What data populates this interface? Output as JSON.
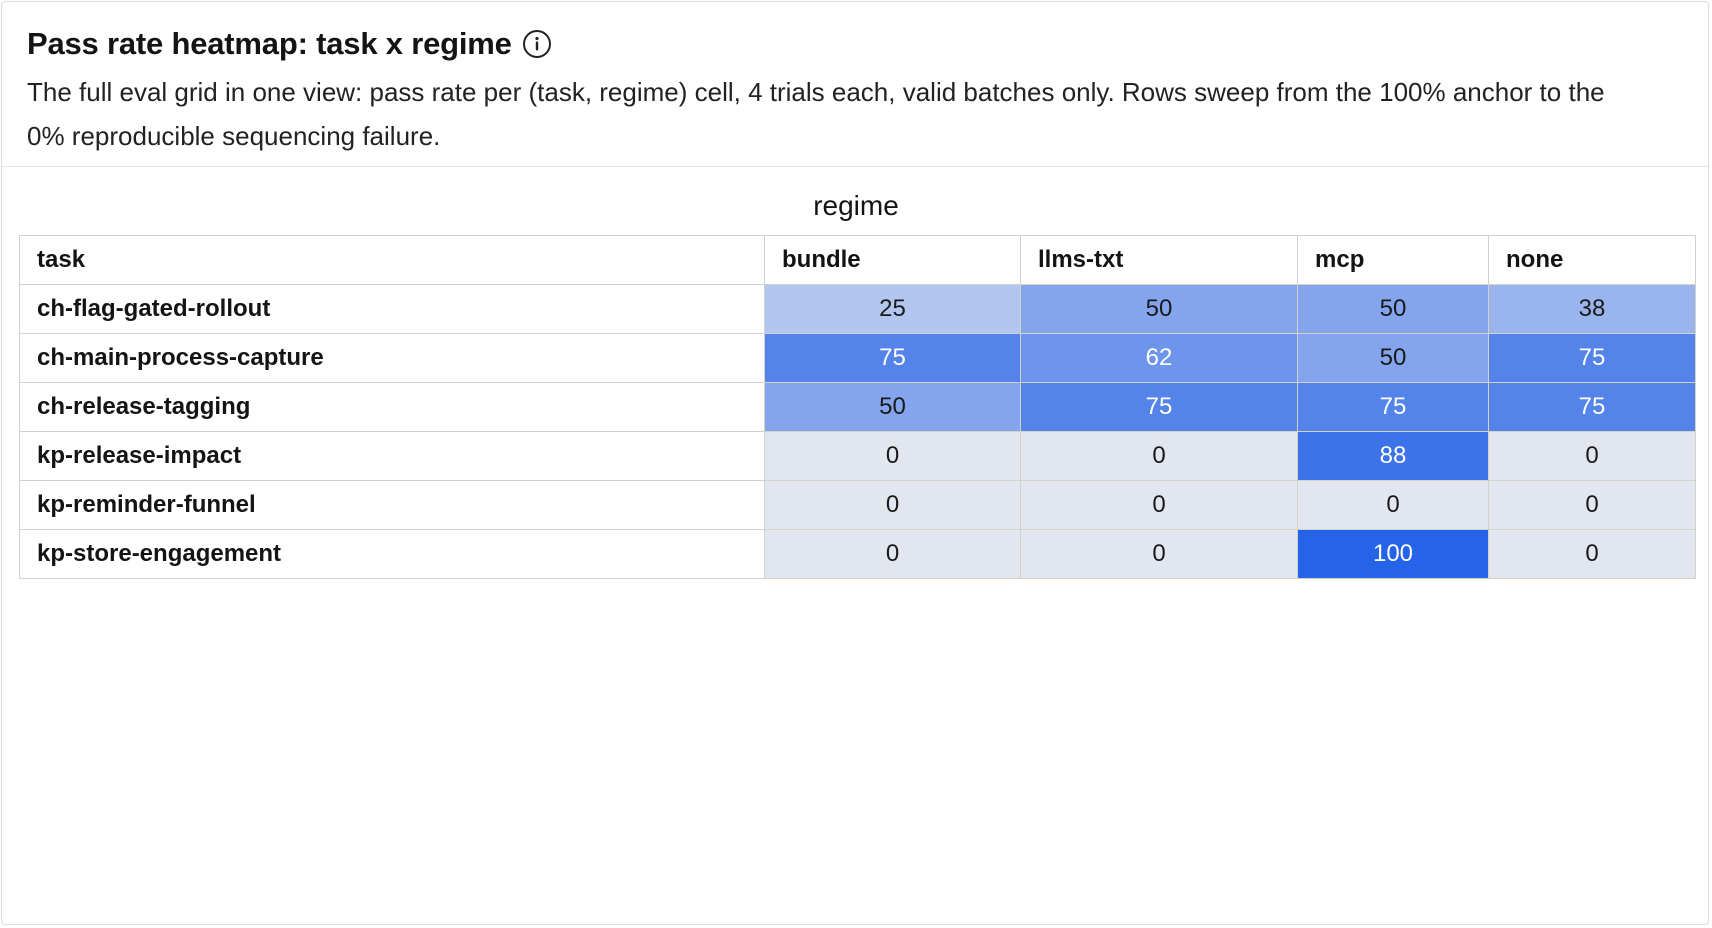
{
  "header": {
    "title": "Pass rate heatmap: task x regime",
    "info_icon": "info-icon",
    "subtitle": "The full eval grid in one view: pass rate per (task, regime) cell, 4 trials each, valid batches only. Rows sweep from the 100% anchor to the 0% reproducible sequencing failure."
  },
  "chart_data": {
    "type": "heatmap",
    "column_axis_label": "regime",
    "row_header": "task",
    "columns": [
      "bundle",
      "llms-txt",
      "mcp",
      "none"
    ],
    "rows": [
      {
        "task": "ch-flag-gated-rollout",
        "values": [
          25,
          50,
          50,
          38
        ]
      },
      {
        "task": "ch-main-process-capture",
        "values": [
          75,
          62,
          50,
          75
        ]
      },
      {
        "task": "ch-release-tagging",
        "values": [
          50,
          75,
          75,
          75
        ]
      },
      {
        "task": "kp-release-impact",
        "values": [
          0,
          0,
          88,
          0
        ]
      },
      {
        "task": "kp-reminder-funnel",
        "values": [
          0,
          0,
          0,
          0
        ]
      },
      {
        "task": "kp-store-engagement",
        "values": [
          0,
          0,
          100,
          0
        ]
      }
    ],
    "value_range": [
      0,
      100
    ],
    "color_scale": {
      "zero": "#e2e7ef",
      "low": "#b3c6ef",
      "high": "#2563e8"
    }
  }
}
